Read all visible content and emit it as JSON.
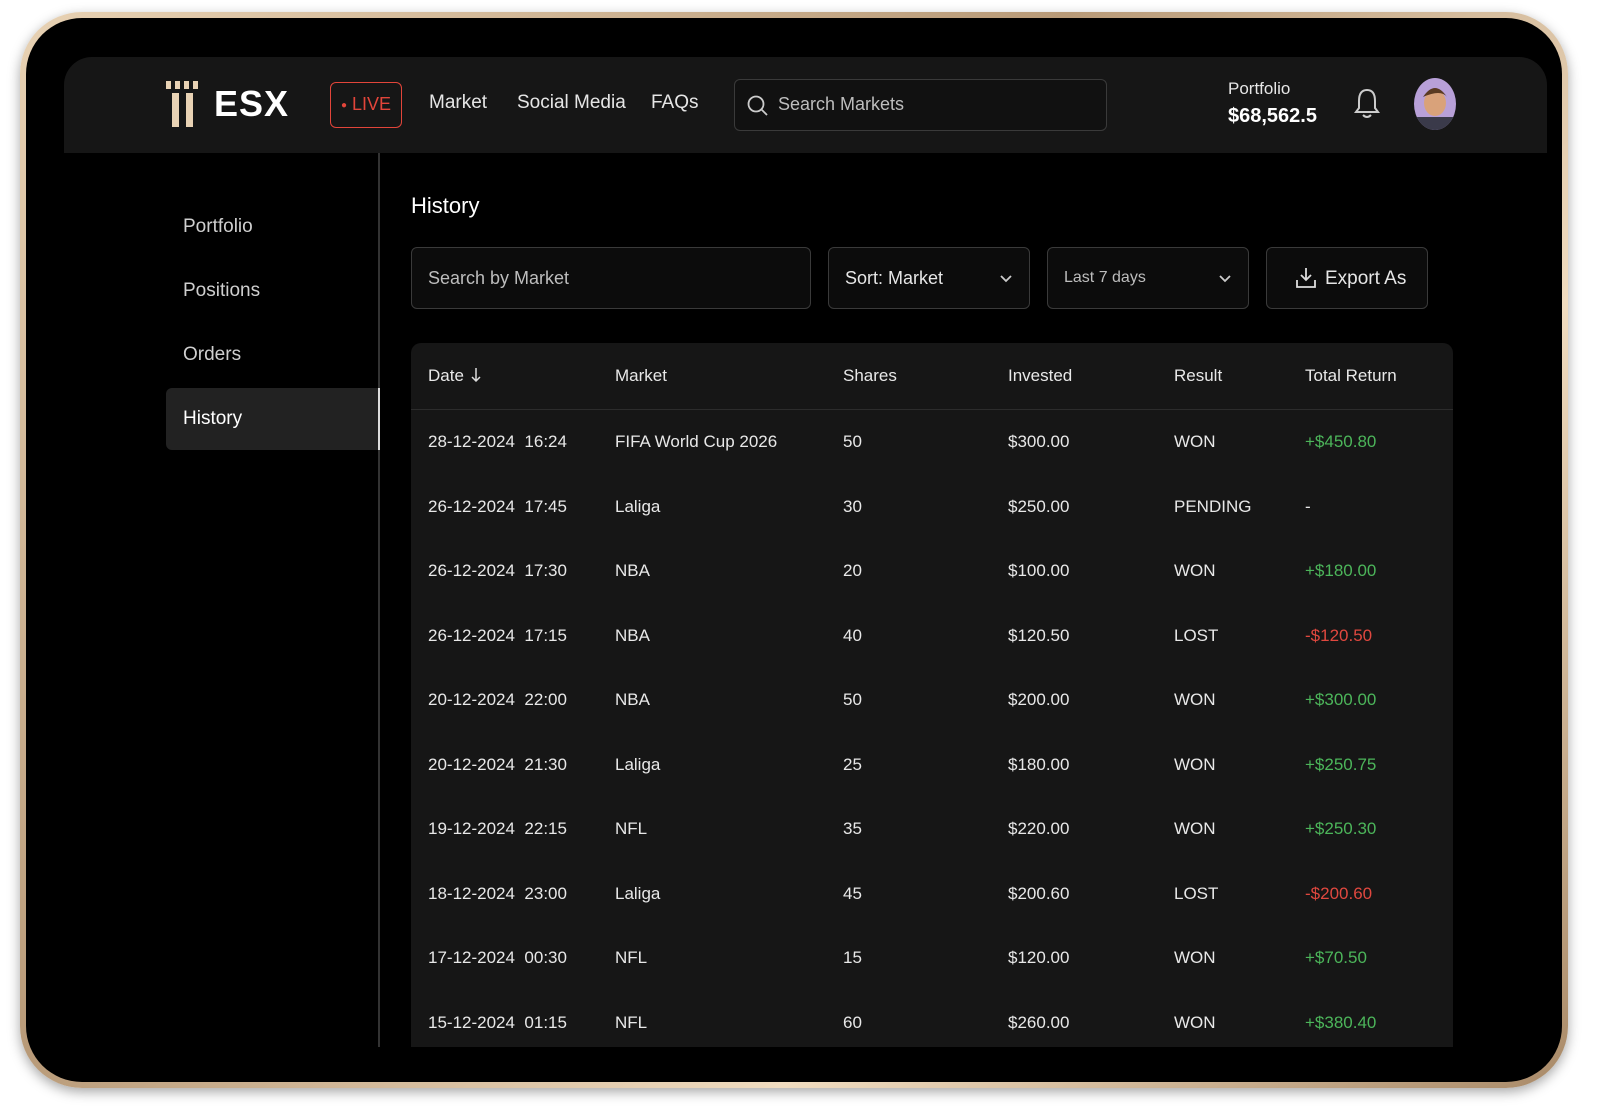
{
  "header": {
    "logo": "ESX",
    "live": "LIVE",
    "nav": [
      "Market",
      "Social Media",
      "FAQs"
    ],
    "search_placeholder": "Search Markets",
    "portfolio_label": "Portfolio",
    "portfolio_value": "$68,562.5"
  },
  "sidebar": {
    "items": [
      "Portfolio",
      "Positions",
      "Orders",
      "History"
    ],
    "active": 3
  },
  "main": {
    "title": "History",
    "search_placeholder": "Search by Market",
    "sort": "Sort: Market",
    "range": "Last 7 days",
    "export": "Export As"
  },
  "table": {
    "columns": [
      "Date",
      "Market",
      "Shares",
      "Invested",
      "Result",
      "Total Return"
    ],
    "rows": [
      [
        "28-12-2024  16:24",
        "FIFA World Cup 2026",
        "50",
        "$300.00",
        "WON",
        "+$450.80"
      ],
      [
        "26-12-2024  17:45",
        "Laliga",
        "30",
        "$250.00",
        "PENDING",
        "-"
      ],
      [
        "26-12-2024  17:30",
        "NBA",
        "20",
        "$100.00",
        "WON",
        "+$180.00"
      ],
      [
        "26-12-2024  17:15",
        "NBA",
        "40",
        "$120.50",
        "LOST",
        "-$120.50"
      ],
      [
        "20-12-2024  22:00",
        "NBA",
        "50",
        "$200.00",
        "WON",
        "+$300.00"
      ],
      [
        "20-12-2024  21:30",
        "Laliga",
        "25",
        "$180.00",
        "WON",
        "+$250.75"
      ],
      [
        "19-12-2024  22:15",
        "NFL",
        "35",
        "$220.00",
        "WON",
        "+$250.30"
      ],
      [
        "18-12-2024  23:00",
        "Laliga",
        "45",
        "$200.60",
        "LOST",
        "-$200.60"
      ],
      [
        "17-12-2024  00:30",
        "NFL",
        "15",
        "$120.00",
        "WON",
        "+$70.50"
      ],
      [
        "15-12-2024  01:15",
        "NFL",
        "60",
        "$260.00",
        "WON",
        "+$380.40"
      ]
    ]
  }
}
